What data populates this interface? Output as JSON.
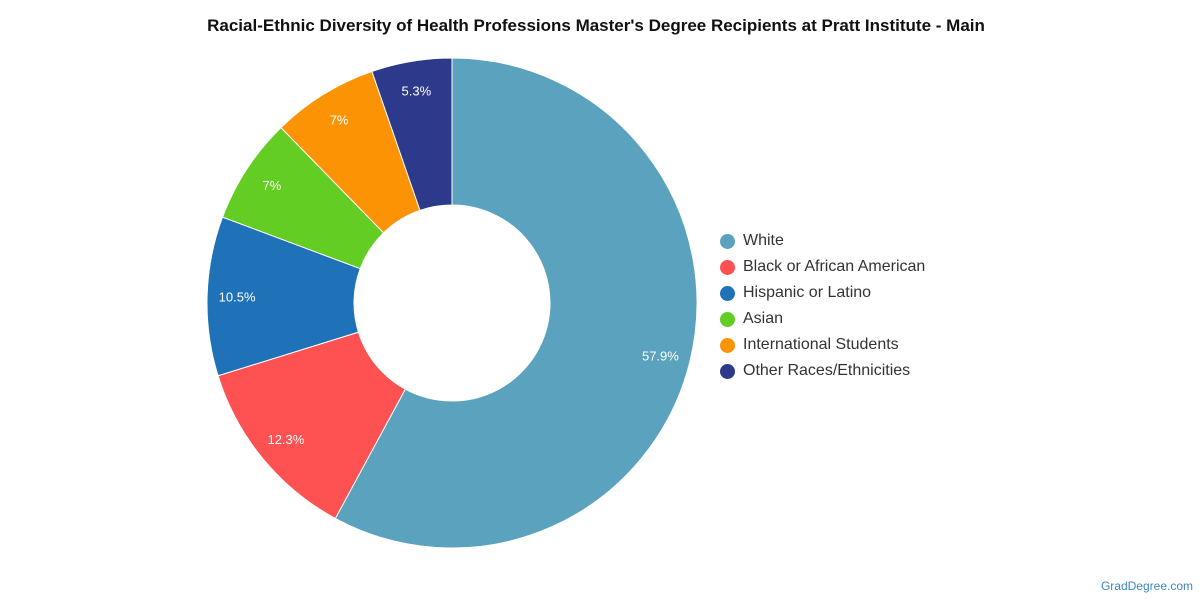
{
  "chart_data": {
    "type": "pie",
    "title": "Racial-Ethnic Diversity of Health Professions Master's Degree Recipients at Pratt Institute - Main",
    "donut": true,
    "legend_position": "right",
    "slices": [
      {
        "name": "White",
        "value": 57.9,
        "label": "57.9%",
        "color": "#5ba2bf"
      },
      {
        "name": "Black or African American",
        "value": 12.3,
        "label": "12.3%",
        "color": "#fe5151"
      },
      {
        "name": "Hispanic or Latino",
        "value": 10.5,
        "label": "10.5%",
        "color": "#1f72b8"
      },
      {
        "name": "Asian",
        "value": 7,
        "label": "7%",
        "color": "#63cd23"
      },
      {
        "name": "International Students",
        "value": 7,
        "label": "7%",
        "color": "#fb9304"
      },
      {
        "name": "Other Races/Ethnicities",
        "value": 5.3,
        "label": "5.3%",
        "color": "#2d3a8c"
      }
    ]
  },
  "footer": {
    "source": "GradDegree.com"
  }
}
